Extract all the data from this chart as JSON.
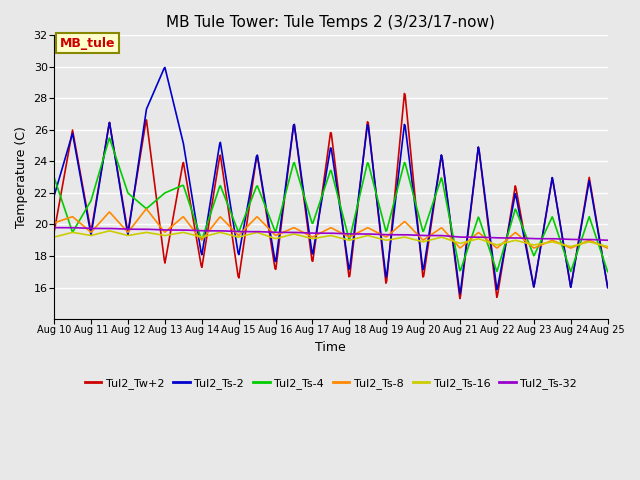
{
  "title": "MB Tule Tower: Tule Temps 2 (3/23/17-now)",
  "xlabel": "Time",
  "ylabel": "Temperature (C)",
  "ylim": [
    14,
    32
  ],
  "yticks": [
    16,
    18,
    20,
    22,
    24,
    26,
    28,
    30,
    32
  ],
  "x_labels": [
    "Aug 10",
    "Aug 11",
    "Aug 12",
    "Aug 13",
    "Aug 14",
    "Aug 15",
    "Aug 16",
    "Aug 17",
    "Aug 18",
    "Aug 19",
    "Aug 20",
    "Aug 21",
    "Aug 22",
    "Aug 23",
    "Aug 24",
    "Aug 25"
  ],
  "n_days": 15,
  "series_order": [
    "Tul2_Tw+2",
    "Tul2_Ts-2",
    "Tul2_Ts-4",
    "Tul2_Ts-8",
    "Tul2_Ts-16",
    "Tul2_Ts-32"
  ],
  "series": {
    "Tul2_Tw+2": {
      "color": "#cc0000",
      "lw": 1.2
    },
    "Tul2_Ts-2": {
      "color": "#0000cc",
      "lw": 1.2
    },
    "Tul2_Ts-4": {
      "color": "#00cc00",
      "lw": 1.2
    },
    "Tul2_Ts-8": {
      "color": "#ff8800",
      "lw": 1.2
    },
    "Tul2_Ts-16": {
      "color": "#cccc00",
      "lw": 1.2
    },
    "Tul2_Ts-32": {
      "color": "#9900cc",
      "lw": 1.2
    }
  },
  "legend_box_color": "#ffffcc",
  "legend_box_edge": "#888800",
  "legend_text": "MB_tule",
  "bg_color": "#e8e8e8",
  "plot_bg": "#e8e8e8",
  "grid_color": "#ffffff",
  "title_fontsize": 11,
  "label_fontsize": 9,
  "tick_fontsize": 8
}
